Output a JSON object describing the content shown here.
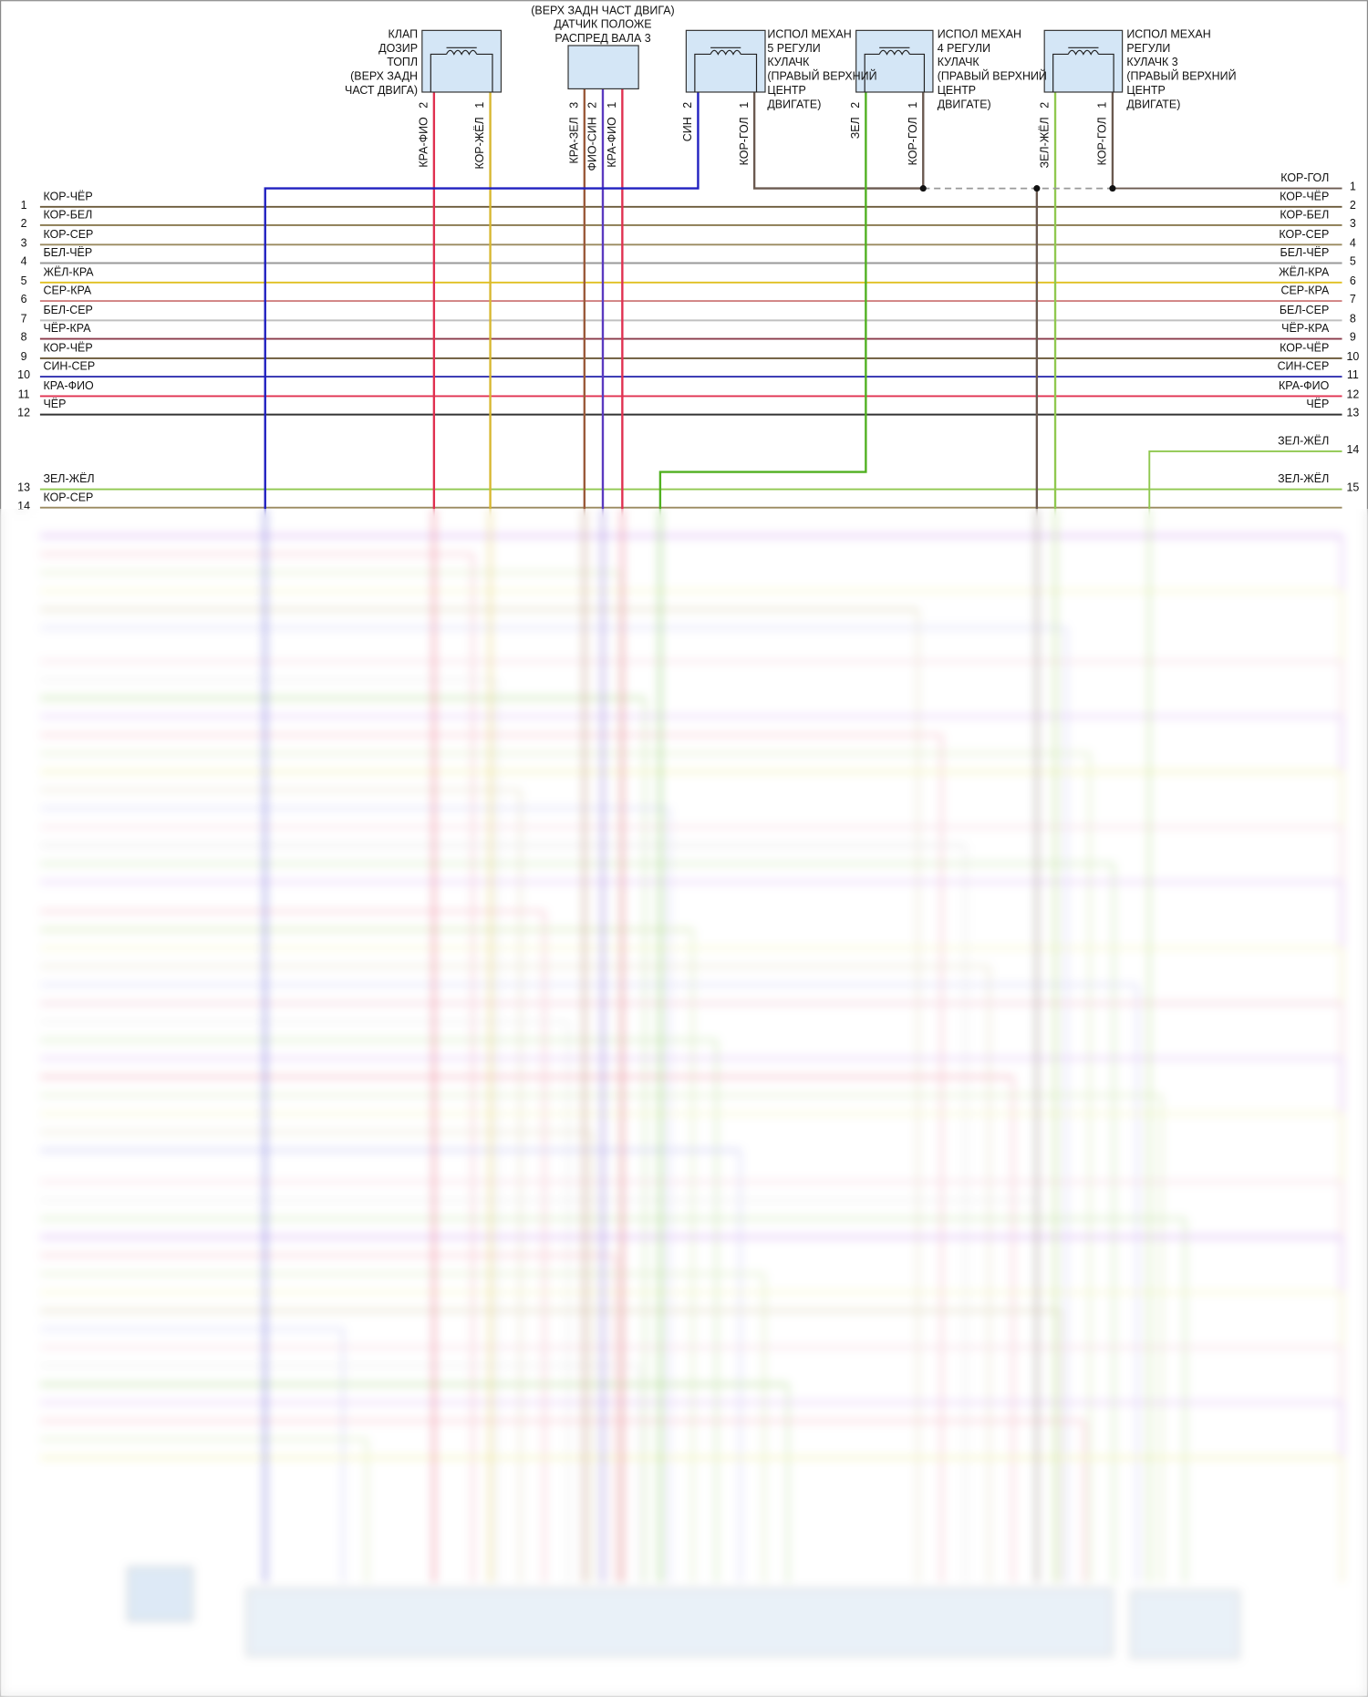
{
  "components": [
    {
      "label": [
        "КЛАП",
        "ДОЗИР",
        "ТОПЛ",
        "(ВЕРХ ЗАДН",
        "ЧАСТ ДВИГА)"
      ],
      "pins": [
        {
          "number": "2",
          "wire": "КРА-ФИО",
          "color": "#e03050"
        },
        {
          "number": "1",
          "wire": "КОР-ЖЁЛ",
          "color": "#d8b830"
        }
      ]
    },
    {
      "label": [
        "(ВЕРХ ЗАДН ЧАСТ ДВИГА)",
        "ДАТЧИК ПОЛОЖЕ",
        "РАСПРЕД ВАЛА 3"
      ],
      "pins": [
        {
          "number": "3",
          "wire": "КРА-ЗЕЛ",
          "color": "#9a5a3a"
        },
        {
          "number": "2",
          "wire": "ФИО-СИН",
          "color": "#5a3ac0"
        },
        {
          "number": "1",
          "wire": "КРА-ФИО",
          "color": "#e03050"
        }
      ]
    },
    {
      "label": [
        "ИСПОЛ МЕХАН",
        "5 РЕГУЛИ",
        "КУЛАЧК",
        "(ПРАВЫЙ ВЕРХНИЙ",
        "ЦЕНТР",
        "ДВИГАТЕ)"
      ],
      "pins": [
        {
          "number": "2",
          "wire": "СИН",
          "color": "#2020c0"
        },
        {
          "number": "1",
          "wire": "КОР-ГОЛ",
          "color": "#6b5a50"
        }
      ]
    },
    {
      "label": [
        "ИСПОЛ МЕХАН",
        "4 РЕГУЛИ",
        "КУЛАЧК",
        "(ПРАВЫЙ ВЕРХНИЙ",
        "ЦЕНТР",
        "ДВИГАТЕ)"
      ],
      "pins": [
        {
          "number": "2",
          "wire": "ЗЕЛ",
          "color": "#50b020"
        },
        {
          "number": "1",
          "wire": "КОР-ГОЛ",
          "color": "#6b5a50"
        }
      ]
    },
    {
      "label": [
        "ИСПОЛ МЕХАН",
        "РЕГУЛИ",
        "КУЛАЧК 3",
        "(ПРАВЫЙ ВЕРХНИЙ",
        "ЦЕНТР",
        "ДВИГАТЕ)"
      ],
      "pins": [
        {
          "number": "2",
          "wire": "ЗЕЛ-ЖЁЛ",
          "color": "#90c850"
        },
        {
          "number": "1",
          "wire": "КОР-ГОЛ",
          "color": "#6b5a50"
        }
      ]
    }
  ],
  "left_rows": [
    {
      "number": "1",
      "label": "КОР-ЧЁР",
      "color": "#6b5a3a"
    },
    {
      "number": "2",
      "label": "КОР-БЕЛ",
      "color": "#8a7a50"
    },
    {
      "number": "3",
      "label": "КОР-СЕР",
      "color": "#9a8a60"
    },
    {
      "number": "4",
      "label": "БЕЛ-ЧЁР",
      "color": "#999999"
    },
    {
      "number": "5",
      "label": "ЖЁЛ-КРА",
      "color": "#e0c020"
    },
    {
      "number": "6",
      "label": "СЕР-КРА",
      "color": "#d08080"
    },
    {
      "number": "7",
      "label": "БЕЛ-СЕР",
      "color": "#c0c0c0"
    },
    {
      "number": "8",
      "label": "ЧЁР-КРА",
      "color": "#8a3a4a"
    },
    {
      "number": "9",
      "label": "КОР-ЧЁР",
      "color": "#6b5a3a"
    },
    {
      "number": "10",
      "label": "СИН-СЕР",
      "color": "#3030b0"
    },
    {
      "number": "11",
      "label": "КРА-ФИО",
      "color": "#e03050"
    },
    {
      "number": "12",
      "label": "ЧЁР",
      "color": "#333333"
    },
    {
      "number": "13",
      "label": "ЗЕЛ-ЖЁЛ",
      "color": "#90c850"
    },
    {
      "number": "14",
      "label": "КОР-СЕР",
      "color": "#9a8a60"
    }
  ],
  "right_rows": [
    {
      "number": "1",
      "label": "КОР-ГОЛ",
      "color": "#6b5a50"
    },
    {
      "number": "2",
      "label": "КОР-ЧЁР",
      "color": "#6b5a3a"
    },
    {
      "number": "3",
      "label": "КОР-БЕЛ",
      "color": "#8a7a50"
    },
    {
      "number": "4",
      "label": "КОР-СЕР",
      "color": "#9a8a60"
    },
    {
      "number": "5",
      "label": "БЕЛ-ЧЁР",
      "color": "#999999"
    },
    {
      "number": "6",
      "label": "ЖЁЛ-КРА",
      "color": "#e0c020"
    },
    {
      "number": "7",
      "label": "СЕР-КРА",
      "color": "#d08080"
    },
    {
      "number": "8",
      "label": "БЕЛ-СЕР",
      "color": "#c0c0c0"
    },
    {
      "number": "9",
      "label": "ЧЁР-КРА",
      "color": "#8a3a4a"
    },
    {
      "number": "10",
      "label": "КОР-ЧЁР",
      "color": "#6b5a3a"
    },
    {
      "number": "11",
      "label": "СИН-СЕР",
      "color": "#3030b0"
    },
    {
      "number": "12",
      "label": "КРА-ФИО",
      "color": "#e03050"
    },
    {
      "number": "13",
      "label": "ЧЁР",
      "color": "#333333"
    },
    {
      "number": "14",
      "label": "ЗЕЛ-ЖЁЛ",
      "color": "#90c850"
    },
    {
      "number": "15",
      "label": "ЗЕЛ-ЖЁЛ",
      "color": "#90c850"
    }
  ]
}
